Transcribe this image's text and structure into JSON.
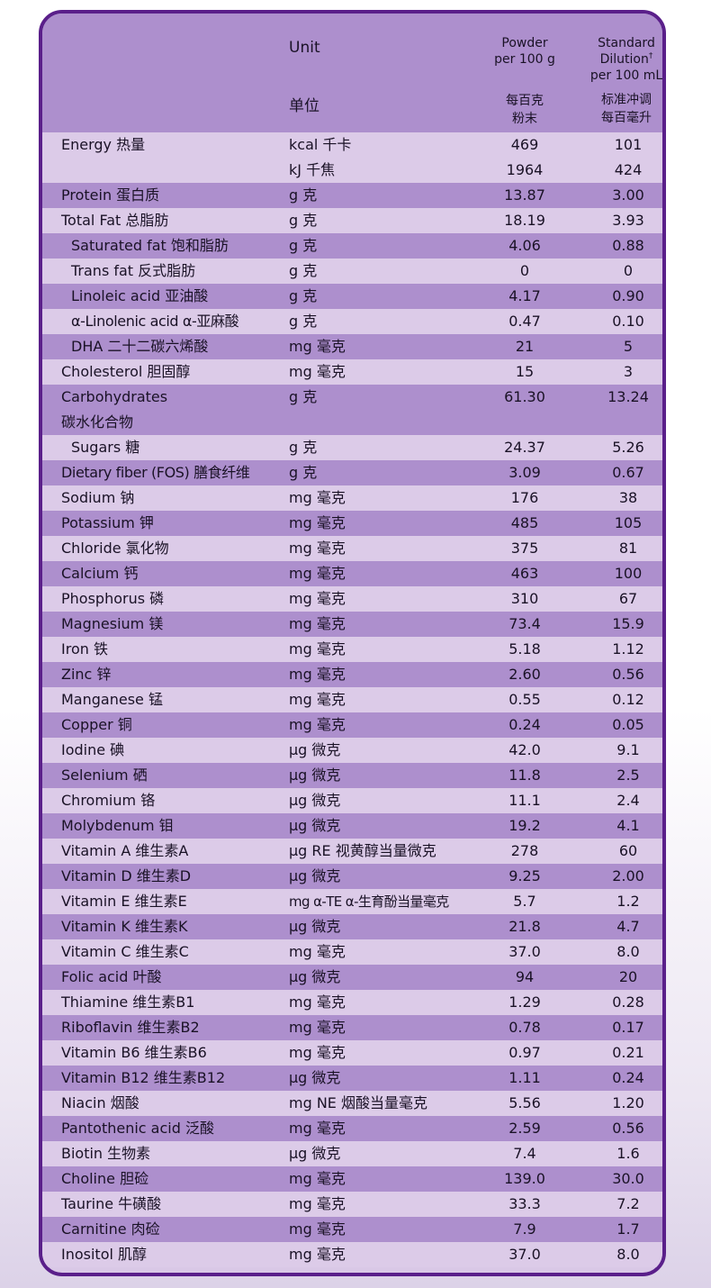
{
  "header": {
    "unit_en": "Unit",
    "unit_cn": "单位",
    "powder_en_1": "Powder",
    "powder_en_2": "per 100 g",
    "powder_cn_1": "每百克",
    "powder_cn_2": "粉末",
    "std_en_1": "Standard",
    "std_en_2": "Dilution",
    "std_dagger": "†",
    "std_en_3": "per 100 mL",
    "std_cn_1": "标准冲调",
    "std_cn_2": "每百毫升"
  },
  "rows": [
    {
      "name": "Energy 热量",
      "unit": "kcal 千卡",
      "powder": "469",
      "dilution": "101"
    },
    {
      "name": "",
      "unit": "kJ 千焦",
      "powder": "1964",
      "dilution": "424"
    },
    {
      "name": "Protein 蛋白质",
      "unit": "g 克",
      "powder": "13.87",
      "dilution": "3.00"
    },
    {
      "name": "Total Fat 总脂肪",
      "unit": "g 克",
      "powder": "18.19",
      "dilution": "3.93"
    },
    {
      "name": "Saturated fat 饱和脂肪",
      "unit": "g 克",
      "powder": "4.06",
      "dilution": "0.88"
    },
    {
      "name": "Trans fat 反式脂肪",
      "unit": "g 克",
      "powder": "0",
      "dilution": "0"
    },
    {
      "name": "Linoleic acid 亚油酸",
      "unit": "g 克",
      "powder": "4.17",
      "dilution": "0.90"
    },
    {
      "name": "α-Linolenic acid α-亚麻酸",
      "unit": "g 克",
      "powder": "0.47",
      "dilution": "0.10"
    },
    {
      "name": "DHA 二十二碳六烯酸",
      "unit": "mg 毫克",
      "powder": "21",
      "dilution": "5"
    },
    {
      "name": "Cholesterol 胆固醇",
      "unit": "mg 毫克",
      "powder": "15",
      "dilution": "3"
    },
    {
      "name": "Carbohydrates",
      "unit": "g 克",
      "powder": "61.30",
      "dilution": "13.24"
    },
    {
      "name": "碳水化合物",
      "unit": "",
      "powder": "",
      "dilution": ""
    },
    {
      "name": "Sugars 糖",
      "unit": "g 克",
      "powder": "24.37",
      "dilution": "5.26"
    },
    {
      "name": "Dietary fiber (FOS) 膳食纤维",
      "unit": "g 克",
      "powder": "3.09",
      "dilution": "0.67"
    },
    {
      "name": "Sodium 钠",
      "unit": "mg 毫克",
      "powder": "176",
      "dilution": "38"
    },
    {
      "name": "Potassium 钾",
      "unit": "mg 毫克",
      "powder": "485",
      "dilution": "105"
    },
    {
      "name": "Chloride 氯化物",
      "unit": "mg 毫克",
      "powder": "375",
      "dilution": "81"
    },
    {
      "name": "Calcium 钙",
      "unit": "mg 毫克",
      "powder": "463",
      "dilution": "100"
    },
    {
      "name": "Phosphorus 磷",
      "unit": "mg 毫克",
      "powder": "310",
      "dilution": "67"
    },
    {
      "name": "Magnesium 镁",
      "unit": "mg 毫克",
      "powder": "73.4",
      "dilution": "15.9"
    },
    {
      "name": "Iron 铁",
      "unit": "mg 毫克",
      "powder": "5.18",
      "dilution": "1.12"
    },
    {
      "name": "Zinc 锌",
      "unit": "mg 毫克",
      "powder": "2.60",
      "dilution": "0.56"
    },
    {
      "name": "Manganese 锰",
      "unit": "mg 毫克",
      "powder": "0.55",
      "dilution": "0.12"
    },
    {
      "name": "Copper 铜",
      "unit": "mg 毫克",
      "powder": "0.24",
      "dilution": "0.05"
    },
    {
      "name": "Iodine 碘",
      "unit": "μg 微克",
      "powder": "42.0",
      "dilution": "9.1"
    },
    {
      "name": "Selenium 硒",
      "unit": "μg 微克",
      "powder": "11.8",
      "dilution": "2.5"
    },
    {
      "name": "Chromium 铬",
      "unit": "μg 微克",
      "powder": "11.1",
      "dilution": "2.4"
    },
    {
      "name": "Molybdenum 钼",
      "unit": "μg 微克",
      "powder": "19.2",
      "dilution": "4.1"
    },
    {
      "name": "Vitamin A 维生素A",
      "unit": "μg RE 视黄醇当量微克",
      "powder": "278",
      "dilution": "60"
    },
    {
      "name": "Vitamin D 维生素D",
      "unit": "μg 微克",
      "powder": "9.25",
      "dilution": "2.00"
    },
    {
      "name": "Vitamin E 维生素E",
      "unit": "mg α-TE α-生育酚当量毫克",
      "powder": "5.7",
      "dilution": "1.2"
    },
    {
      "name": "Vitamin K 维生素K",
      "unit": "μg 微克",
      "powder": "21.8",
      "dilution": "4.7"
    },
    {
      "name": "Vitamin C 维生素C",
      "unit": "mg 毫克",
      "powder": "37.0",
      "dilution": "8.0"
    },
    {
      "name": "Folic acid 叶酸",
      "unit": "μg 微克",
      "powder": "94",
      "dilution": "20"
    },
    {
      "name": "Thiamine 维生素B1",
      "unit": "mg 毫克",
      "powder": "1.29",
      "dilution": "0.28"
    },
    {
      "name": "Riboflavin 维生素B2",
      "unit": "mg 毫克",
      "powder": "0.78",
      "dilution": "0.17"
    },
    {
      "name": "Vitamin B6 维生素B6",
      "unit": "mg 毫克",
      "powder": "0.97",
      "dilution": "0.21"
    },
    {
      "name": "Vitamin B12 维生素B12",
      "unit": "μg 微克",
      "powder": "1.11",
      "dilution": "0.24"
    },
    {
      "name": "Niacin 烟酸",
      "unit": "mg NE 烟酸当量毫克",
      "powder": "5.56",
      "dilution": "1.20"
    },
    {
      "name": "Pantothenic acid 泛酸",
      "unit": "mg 毫克",
      "powder": "2.59",
      "dilution": "0.56"
    },
    {
      "name": "Biotin 生物素",
      "unit": "μg 微克",
      "powder": "7.4",
      "dilution": "1.6"
    },
    {
      "name": "Choline 胆硷",
      "unit": "mg 毫克",
      "powder": "139.0",
      "dilution": "30.0"
    },
    {
      "name": "Taurine 牛磺酸",
      "unit": "mg 毫克",
      "powder": "33.3",
      "dilution": "7.2"
    },
    {
      "name": "Carnitine 肉硷",
      "unit": "mg 毫克",
      "powder": "7.9",
      "dilution": "1.7"
    },
    {
      "name": "Inositol 肌醇",
      "unit": "mg 毫克",
      "powder": "37.0",
      "dilution": "8.0"
    }
  ]
}
